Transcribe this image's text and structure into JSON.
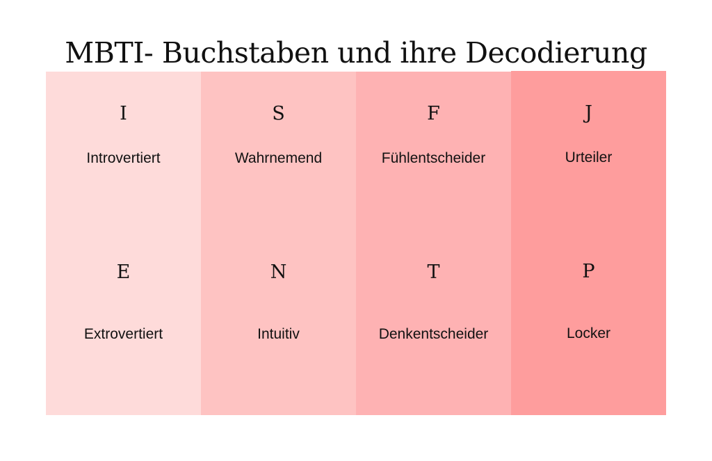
{
  "title": "MBTI- Buchstaben und ihre Decodierung",
  "columns": [
    {
      "color": "#fedbda",
      "top": {
        "letter": "I",
        "word": "Introvertiert"
      },
      "bottom": {
        "letter": "E",
        "word": "Extrovertiert"
      }
    },
    {
      "color": "#fec3c2",
      "top": {
        "letter": "S",
        "word": "Wahrnemend"
      },
      "bottom": {
        "letter": "N",
        "word": "Intuitiv"
      }
    },
    {
      "color": "#feb2b3",
      "top": {
        "letter": "F",
        "word": "Fühlentscheider"
      },
      "bottom": {
        "letter": "T",
        "word": "Denkentscheider"
      }
    },
    {
      "color": "#fe9d9d",
      "top": {
        "letter": "J",
        "word": "Urteiler"
      },
      "bottom": {
        "letter": "P",
        "word": "Locker"
      }
    }
  ]
}
